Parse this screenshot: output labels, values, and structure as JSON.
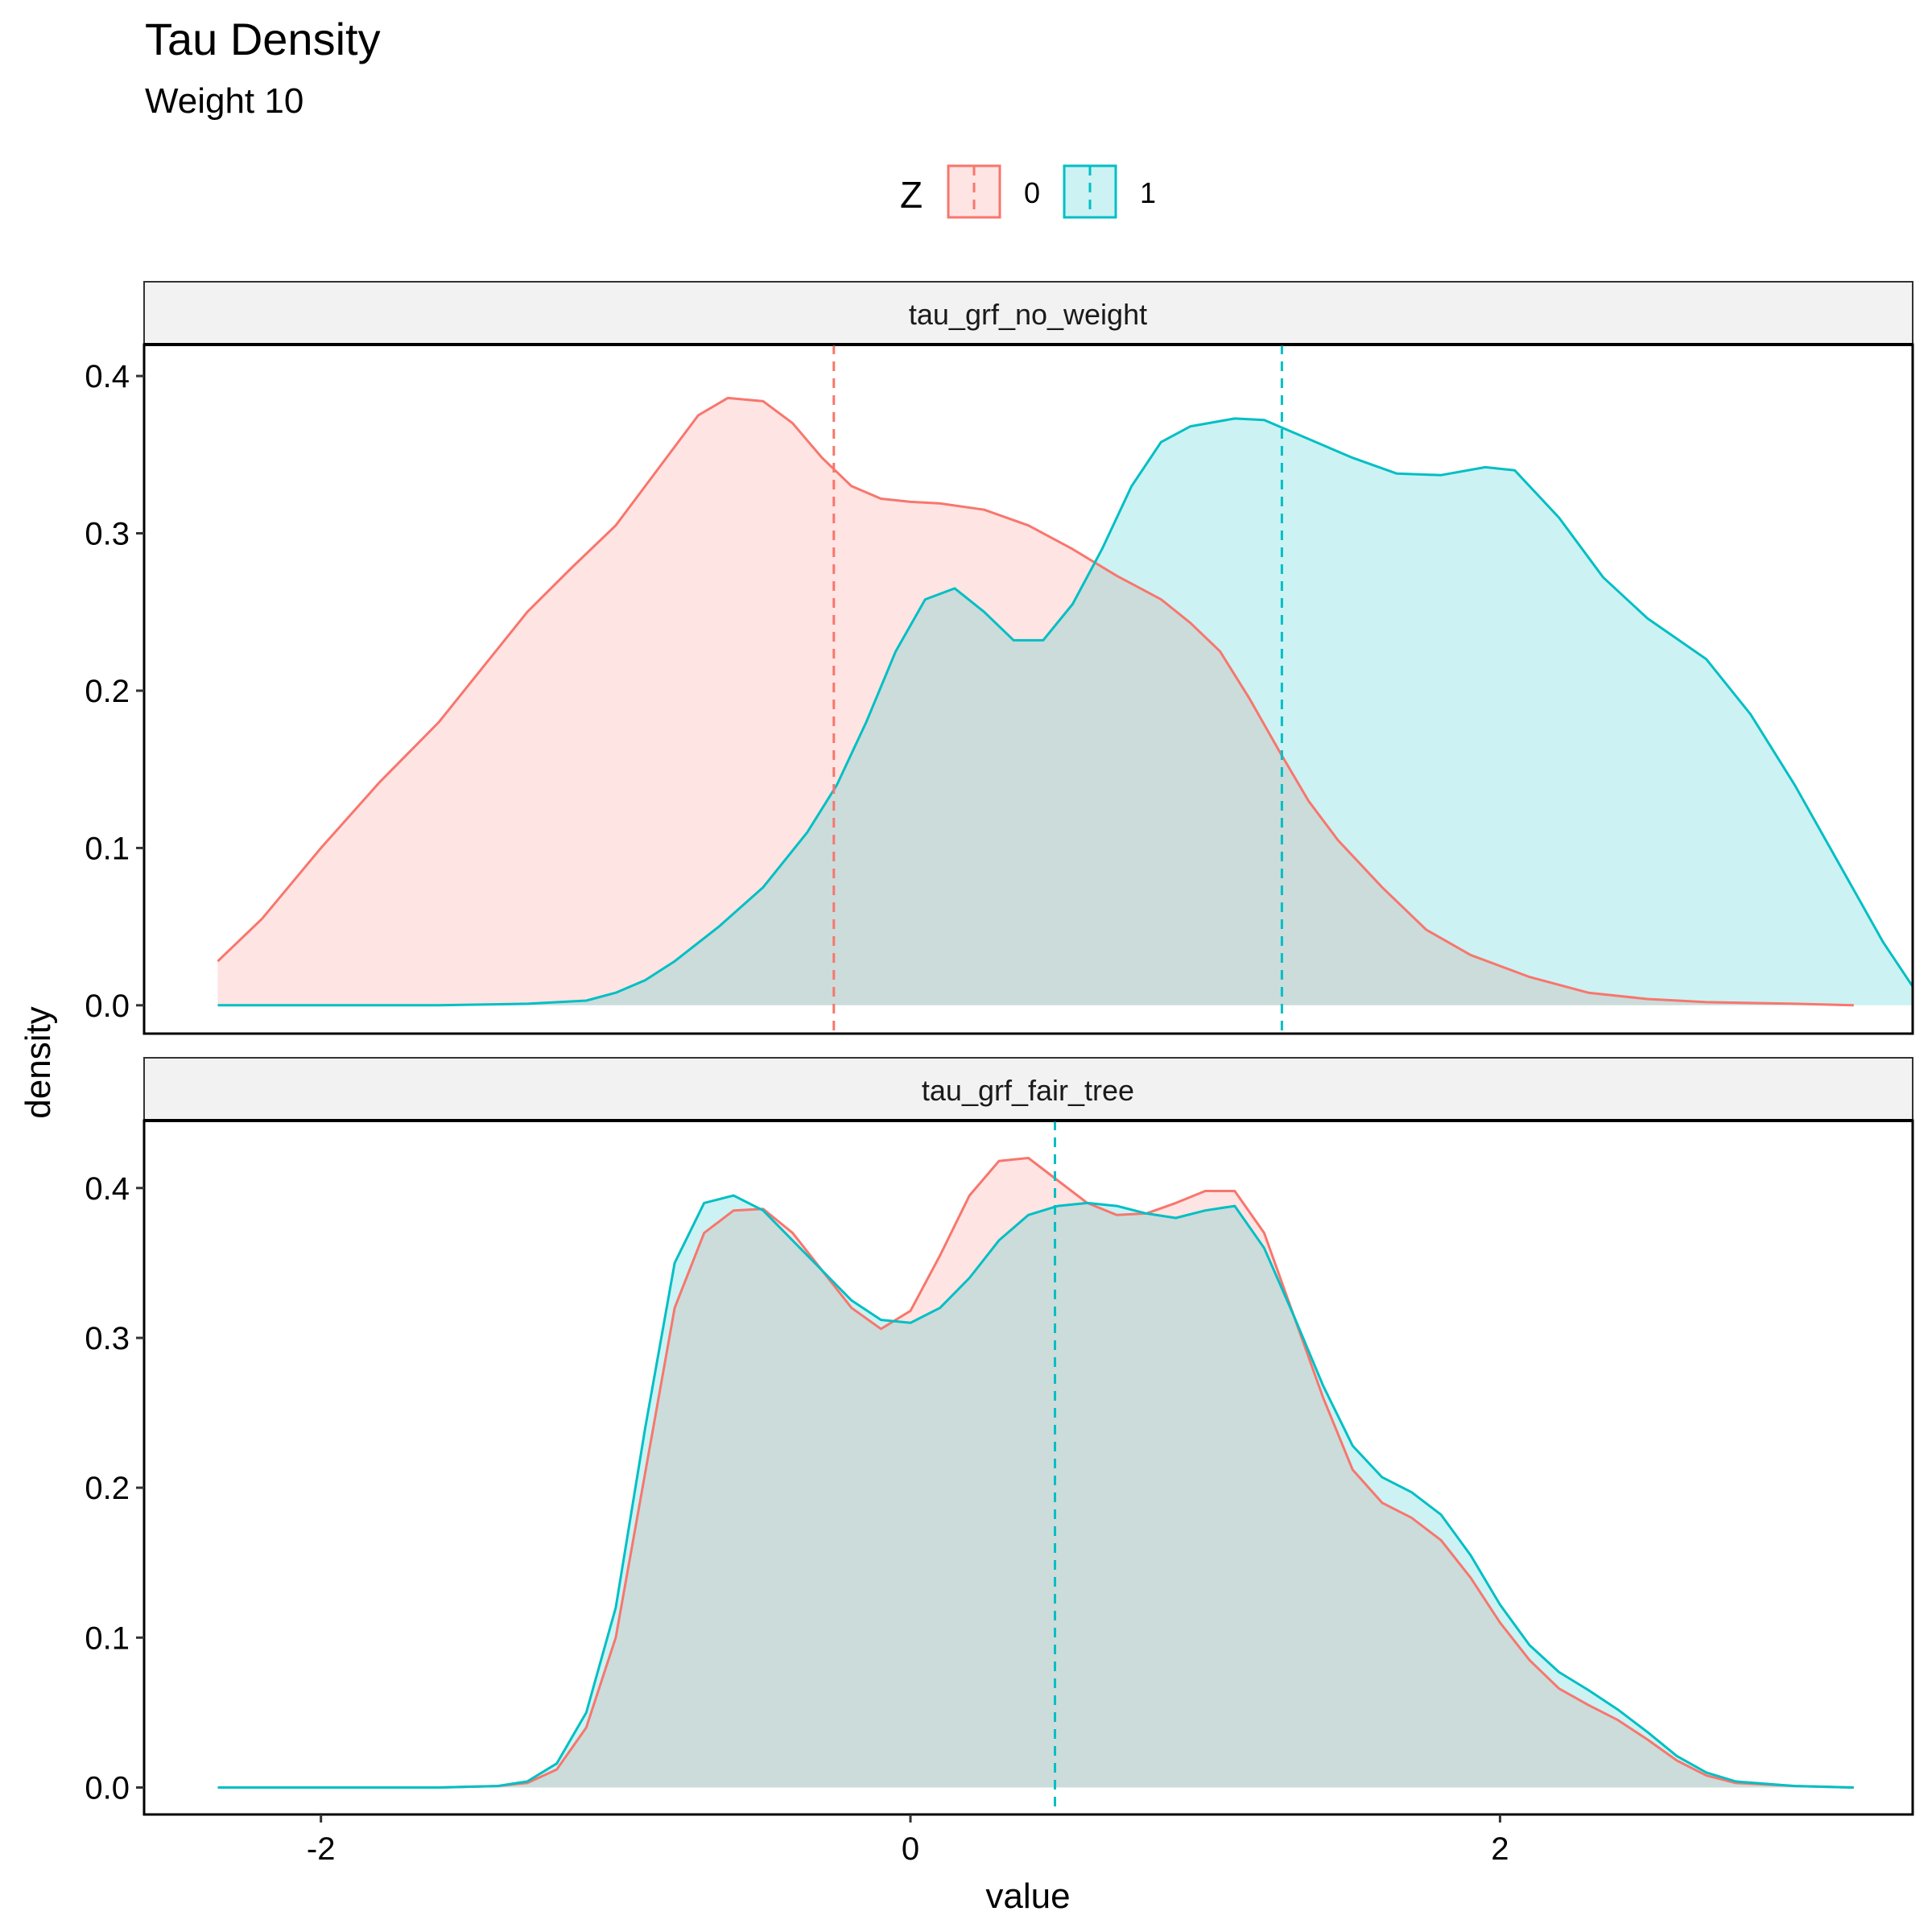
{
  "chart_data": {
    "type": "area",
    "title": "Tau Density",
    "subtitle": "Weight 10",
    "xlabel": "value",
    "ylabel": "density",
    "legend": {
      "title": "Z",
      "position": "top",
      "entries": [
        {
          "name": "0",
          "color": "#F8766D"
        },
        {
          "name": "1",
          "color": "#00BFC4"
        }
      ]
    },
    "xlim": [
      -2.6,
      3.4
    ],
    "x_ticks": [
      -2,
      0,
      2
    ],
    "x_tick_labels": [
      "-2",
      "0",
      "2"
    ],
    "panels": [
      {
        "name": "tau_grf_no_weight",
        "ylim": [
          -0.018,
          0.42
        ],
        "y_ticks": [
          0.0,
          0.1,
          0.2,
          0.3,
          0.4
        ],
        "y_tick_labels": [
          "0.0",
          "0.1",
          "0.2",
          "0.3",
          "0.4"
        ],
        "series": [
          {
            "name": "0",
            "color": "#F8766D",
            "mean": -0.26,
            "points": [
              [
                -2.35,
                0.028
              ],
              [
                -2.2,
                0.055
              ],
              [
                -2.0,
                0.1
              ],
              [
                -1.8,
                0.142
              ],
              [
                -1.6,
                0.18
              ],
              [
                -1.45,
                0.215
              ],
              [
                -1.3,
                0.25
              ],
              [
                -1.15,
                0.278
              ],
              [
                -1.0,
                0.305
              ],
              [
                -0.9,
                0.33
              ],
              [
                -0.8,
                0.355
              ],
              [
                -0.72,
                0.375
              ],
              [
                -0.62,
                0.386
              ],
              [
                -0.5,
                0.384
              ],
              [
                -0.4,
                0.37
              ],
              [
                -0.3,
                0.348
              ],
              [
                -0.2,
                0.33
              ],
              [
                -0.1,
                0.322
              ],
              [
                0.0,
                0.32
              ],
              [
                0.1,
                0.319
              ],
              [
                0.25,
                0.315
              ],
              [
                0.4,
                0.305
              ],
              [
                0.55,
                0.29
              ],
              [
                0.7,
                0.273
              ],
              [
                0.85,
                0.258
              ],
              [
                0.95,
                0.243
              ],
              [
                1.05,
                0.225
              ],
              [
                1.15,
                0.195
              ],
              [
                1.25,
                0.162
              ],
              [
                1.35,
                0.13
              ],
              [
                1.45,
                0.105
              ],
              [
                1.6,
                0.075
              ],
              [
                1.75,
                0.048
              ],
              [
                1.9,
                0.032
              ],
              [
                2.1,
                0.018
              ],
              [
                2.3,
                0.008
              ],
              [
                2.5,
                0.004
              ],
              [
                2.7,
                0.002
              ],
              [
                3.0,
                0.001
              ],
              [
                3.2,
                0.0
              ]
            ]
          },
          {
            "name": "1",
            "color": "#00BFC4",
            "mean": 1.26,
            "points": [
              [
                -2.35,
                0.0
              ],
              [
                -2.0,
                0.0
              ],
              [
                -1.6,
                0.0
              ],
              [
                -1.3,
                0.001
              ],
              [
                -1.1,
                0.003
              ],
              [
                -1.0,
                0.008
              ],
              [
                -0.9,
                0.016
              ],
              [
                -0.8,
                0.028
              ],
              [
                -0.65,
                0.05
              ],
              [
                -0.5,
                0.075
              ],
              [
                -0.35,
                0.11
              ],
              [
                -0.25,
                0.14
              ],
              [
                -0.15,
                0.18
              ],
              [
                -0.05,
                0.225
              ],
              [
                0.05,
                0.258
              ],
              [
                0.15,
                0.265
              ],
              [
                0.25,
                0.25
              ],
              [
                0.35,
                0.232
              ],
              [
                0.45,
                0.232
              ],
              [
                0.55,
                0.255
              ],
              [
                0.65,
                0.29
              ],
              [
                0.75,
                0.33
              ],
              [
                0.85,
                0.358
              ],
              [
                0.95,
                0.368
              ],
              [
                1.1,
                0.373
              ],
              [
                1.2,
                0.372
              ],
              [
                1.35,
                0.36
              ],
              [
                1.5,
                0.348
              ],
              [
                1.65,
                0.338
              ],
              [
                1.8,
                0.337
              ],
              [
                1.95,
                0.342
              ],
              [
                2.05,
                0.34
              ],
              [
                2.2,
                0.31
              ],
              [
                2.35,
                0.272
              ],
              [
                2.5,
                0.246
              ],
              [
                2.7,
                0.22
              ],
              [
                2.85,
                0.185
              ],
              [
                3.0,
                0.14
              ],
              [
                3.15,
                0.09
              ],
              [
                3.3,
                0.04
              ],
              [
                3.4,
                0.012
              ]
            ]
          }
        ]
      },
      {
        "name": "tau_grf_fair_tree",
        "ylim": [
          -0.018,
          0.445
        ],
        "y_ticks": [
          0.0,
          0.1,
          0.2,
          0.3,
          0.4
        ],
        "y_tick_labels": [
          "0.0",
          "0.1",
          "0.2",
          "0.3",
          "0.4"
        ],
        "series": [
          {
            "name": "0",
            "color": "#F8766D",
            "mean": 0.49,
            "points": [
              [
                -2.35,
                0.0
              ],
              [
                -2.0,
                0.0
              ],
              [
                -1.6,
                0.0
              ],
              [
                -1.4,
                0.001
              ],
              [
                -1.3,
                0.003
              ],
              [
                -1.2,
                0.012
              ],
              [
                -1.1,
                0.04
              ],
              [
                -1.0,
                0.1
              ],
              [
                -0.9,
                0.21
              ],
              [
                -0.8,
                0.32
              ],
              [
                -0.7,
                0.37
              ],
              [
                -0.6,
                0.385
              ],
              [
                -0.5,
                0.386
              ],
              [
                -0.4,
                0.37
              ],
              [
                -0.3,
                0.345
              ],
              [
                -0.2,
                0.32
              ],
              [
                -0.1,
                0.306
              ],
              [
                0.0,
                0.318
              ],
              [
                0.1,
                0.355
              ],
              [
                0.2,
                0.395
              ],
              [
                0.3,
                0.418
              ],
              [
                0.4,
                0.42
              ],
              [
                0.5,
                0.405
              ],
              [
                0.6,
                0.39
              ],
              [
                0.7,
                0.382
              ],
              [
                0.8,
                0.383
              ],
              [
                0.9,
                0.39
              ],
              [
                1.0,
                0.398
              ],
              [
                1.1,
                0.398
              ],
              [
                1.2,
                0.37
              ],
              [
                1.3,
                0.315
              ],
              [
                1.4,
                0.26
              ],
              [
                1.5,
                0.212
              ],
              [
                1.6,
                0.19
              ],
              [
                1.7,
                0.18
              ],
              [
                1.8,
                0.165
              ],
              [
                1.9,
                0.14
              ],
              [
                2.0,
                0.11
              ],
              [
                2.1,
                0.085
              ],
              [
                2.2,
                0.066
              ],
              [
                2.3,
                0.055
              ],
              [
                2.4,
                0.045
              ],
              [
                2.5,
                0.032
              ],
              [
                2.6,
                0.018
              ],
              [
                2.7,
                0.008
              ],
              [
                2.8,
                0.003
              ],
              [
                3.0,
                0.001
              ],
              [
                3.2,
                0.0
              ]
            ]
          },
          {
            "name": "1",
            "color": "#00BFC4",
            "mean": 0.49,
            "points": [
              [
                -2.35,
                0.0
              ],
              [
                -2.0,
                0.0
              ],
              [
                -1.6,
                0.0
              ],
              [
                -1.4,
                0.001
              ],
              [
                -1.3,
                0.004
              ],
              [
                -1.2,
                0.016
              ],
              [
                -1.1,
                0.05
              ],
              [
                -1.0,
                0.12
              ],
              [
                -0.9,
                0.24
              ],
              [
                -0.8,
                0.35
              ],
              [
                -0.7,
                0.39
              ],
              [
                -0.6,
                0.395
              ],
              [
                -0.5,
                0.385
              ],
              [
                -0.4,
                0.365
              ],
              [
                -0.3,
                0.345
              ],
              [
                -0.2,
                0.325
              ],
              [
                -0.1,
                0.312
              ],
              [
                0.0,
                0.31
              ],
              [
                0.1,
                0.32
              ],
              [
                0.2,
                0.34
              ],
              [
                0.3,
                0.365
              ],
              [
                0.4,
                0.382
              ],
              [
                0.5,
                0.388
              ],
              [
                0.6,
                0.39
              ],
              [
                0.7,
                0.388
              ],
              [
                0.8,
                0.383
              ],
              [
                0.9,
                0.38
              ],
              [
                1.0,
                0.385
              ],
              [
                1.1,
                0.388
              ],
              [
                1.2,
                0.36
              ],
              [
                1.3,
                0.315
              ],
              [
                1.4,
                0.268
              ],
              [
                1.5,
                0.228
              ],
              [
                1.6,
                0.207
              ],
              [
                1.7,
                0.197
              ],
              [
                1.8,
                0.182
              ],
              [
                1.9,
                0.155
              ],
              [
                2.0,
                0.122
              ],
              [
                2.1,
                0.095
              ],
              [
                2.2,
                0.077
              ],
              [
                2.3,
                0.065
              ],
              [
                2.4,
                0.052
              ],
              [
                2.5,
                0.037
              ],
              [
                2.6,
                0.021
              ],
              [
                2.7,
                0.01
              ],
              [
                2.8,
                0.004
              ],
              [
                3.0,
                0.001
              ],
              [
                3.2,
                0.0
              ]
            ]
          }
        ]
      }
    ]
  }
}
